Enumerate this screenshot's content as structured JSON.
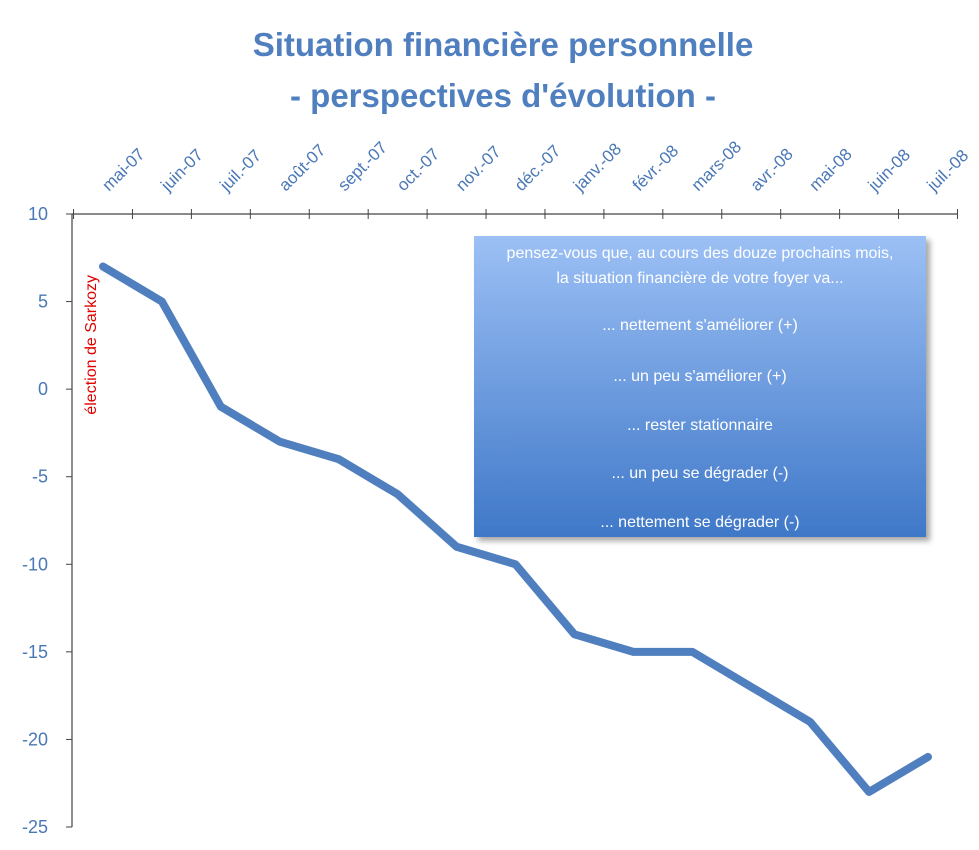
{
  "chart_data": {
    "type": "line",
    "title_line1": "Situation financière personnelle",
    "title_line2": "-  perspectives d'évolution -",
    "categories": [
      "mai-07",
      "juin-07",
      "juil.-07",
      "août-07",
      "sept.-07",
      "oct.-07",
      "nov.-07",
      "déc.-07",
      "janv.-08",
      "févr.-08",
      "mars-08",
      "avr.-08",
      "mai-08",
      "juin-08",
      "juil.-08"
    ],
    "values": [
      7,
      5,
      -1,
      -3,
      -4,
      -6,
      -9,
      -10,
      -14,
      -15,
      -15,
      -17,
      -19,
      -23,
      -21
    ],
    "ylim": [
      -25,
      10
    ],
    "yticks": [
      "10",
      "5",
      "0",
      "-5",
      "-10",
      "-15",
      "-20",
      "-25"
    ],
    "grid": false,
    "line_color": "#4f7fbf",
    "annotation": {
      "text": "élection de Sarkozy",
      "color": "#e00000"
    },
    "legend_box": {
      "lines": [
        "pensez-vous que, au cours des douze prochains mois,",
        "la situation financière de votre foyer va...",
        "... nettement s'améliorer (+)",
        "... un peu s'améliorer (+)",
        "... rester stationnaire",
        "... un peu se dégrader (-)",
        "... nettement se dégrader (-)"
      ],
      "gradient_top": "#9cc0f5",
      "gradient_bottom": "#3f78c8"
    }
  }
}
